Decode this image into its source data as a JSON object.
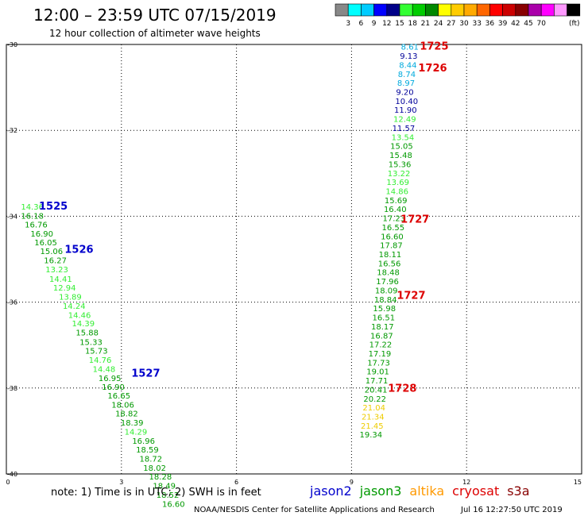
{
  "header": {
    "title": "12:00 – 23:59 UTC 07/15/2019",
    "subtitle": "12 hour collection of altimeter wave heights"
  },
  "color_scale": {
    "colors": [
      "#888888",
      "#00ffff",
      "#00ccff",
      "#0000ff",
      "#000088",
      "#33ff33",
      "#00cc00",
      "#008800",
      "#ffff00",
      "#ffcc00",
      "#ffaa00",
      "#ff6600",
      "#ff0000",
      "#cc0000",
      "#880000",
      "#aa00aa",
      "#ff00ff",
      "#ff99ff",
      "#000000"
    ],
    "labels": [
      "3",
      "6",
      "9",
      "12",
      "15",
      "18",
      "21",
      "24",
      "27",
      "30",
      "33",
      "36",
      "39",
      "42",
      "45",
      "70"
    ],
    "unit": "(ft)"
  },
  "footer": {
    "note": "note:  1) Time is in UTC;  2) SWH is in feet",
    "legend": [
      {
        "name": "jason2",
        "color": "#0000cc"
      },
      {
        "name": "jason3",
        "color": "#009900"
      },
      {
        "name": "altika",
        "color": "#ff9900"
      },
      {
        "name": "cryosat",
        "color": "#dd0000"
      },
      {
        "name": "s3a",
        "color": "#880000"
      }
    ],
    "credit": "NOAA/NESDIS Center for Satellite Applications and Research",
    "timestamp": "Jul 16 12:27:50 UTC 2019"
  },
  "chart_data": {
    "type": "scatter",
    "title": "12:00 – 23:59 UTC 07/15/2019",
    "subtitle": "12 hour collection of altimeter wave heights",
    "xlim": [
      0,
      15
    ],
    "ylim": [
      -40,
      -30
    ],
    "x_ticks": [
      "0",
      "3",
      "6",
      "9",
      "12",
      "15"
    ],
    "y_ticks": [
      "-30",
      "-32",
      "-34",
      "-36",
      "-38",
      "-40"
    ],
    "grid": true,
    "track_labels": [
      {
        "text": "1525",
        "x": 0.85,
        "y": -33.77,
        "color": "#0000cc"
      },
      {
        "text": "1526",
        "x": 1.52,
        "y": -34.78,
        "color": "#0000cc"
      },
      {
        "text": "1527",
        "x": 3.26,
        "y": -37.66,
        "color": "#0000cc"
      },
      {
        "text": "1725",
        "x": 10.78,
        "y": -30.05,
        "color": "#dd0000"
      },
      {
        "text": "1726",
        "x": 10.74,
        "y": -30.55,
        "color": "#dd0000"
      },
      {
        "text": "1727",
        "x": 10.28,
        "y": -34.08,
        "color": "#dd0000"
      },
      {
        "text": "1727",
        "x": 10.18,
        "y": -35.85,
        "color": "#dd0000"
      },
      {
        "text": "1728",
        "x": 9.95,
        "y": -38.01,
        "color": "#dd0000"
      }
    ],
    "points": [
      {
        "v": "14.36",
        "x": 0.38,
        "y": -33.77,
        "c": "#33ee33"
      },
      {
        "v": "16.18",
        "x": 0.38,
        "y": -33.98,
        "c": "#009900"
      },
      {
        "v": "16.76",
        "x": 0.48,
        "y": -34.19,
        "c": "#009900"
      },
      {
        "v": "16.90",
        "x": 0.63,
        "y": -34.4,
        "c": "#009900"
      },
      {
        "v": "16.05",
        "x": 0.73,
        "y": -34.6,
        "c": "#009900"
      },
      {
        "v": "15.06",
        "x": 0.88,
        "y": -34.81,
        "c": "#009900"
      },
      {
        "v": "16.27",
        "x": 0.98,
        "y": -35.02,
        "c": "#009900"
      },
      {
        "v": "13.23",
        "x": 1.02,
        "y": -35.23,
        "c": "#33ee33"
      },
      {
        "v": "14.41",
        "x": 1.12,
        "y": -35.45,
        "c": "#33ee33"
      },
      {
        "v": "12.94",
        "x": 1.22,
        "y": -35.66,
        "c": "#33ee33"
      },
      {
        "v": "13.89",
        "x": 1.37,
        "y": -35.87,
        "c": "#33ee33"
      },
      {
        "v": "14.24",
        "x": 1.47,
        "y": -36.08,
        "c": "#33ee33"
      },
      {
        "v": "14.46",
        "x": 1.61,
        "y": -36.29,
        "c": "#33ee33"
      },
      {
        "v": "14.39",
        "x": 1.71,
        "y": -36.49,
        "c": "#33ee33"
      },
      {
        "v": "15.88",
        "x": 1.81,
        "y": -36.7,
        "c": "#009900"
      },
      {
        "v": "15.33",
        "x": 1.91,
        "y": -36.92,
        "c": "#009900"
      },
      {
        "v": "15.73",
        "x": 2.05,
        "y": -37.13,
        "c": "#009900"
      },
      {
        "v": "14.76",
        "x": 2.15,
        "y": -37.34,
        "c": "#33ee33"
      },
      {
        "v": "14.48",
        "x": 2.25,
        "y": -37.55,
        "c": "#33ee33"
      },
      {
        "v": "16.95",
        "x": 2.4,
        "y": -37.76,
        "c": "#009900"
      },
      {
        "v": "16.90",
        "x": 2.49,
        "y": -37.97,
        "c": "#009900"
      },
      {
        "v": "16.65",
        "x": 2.64,
        "y": -38.17,
        "c": "#009900"
      },
      {
        "v": "18.06",
        "x": 2.74,
        "y": -38.38,
        "c": "#009900"
      },
      {
        "v": "18.82",
        "x": 2.84,
        "y": -38.59,
        "c": "#009900"
      },
      {
        "v": "18.39",
        "x": 2.98,
        "y": -38.8,
        "c": "#009900"
      },
      {
        "v": "14.29",
        "x": 3.08,
        "y": -39.01,
        "c": "#33ee33"
      },
      {
        "v": "16.96",
        "x": 3.28,
        "y": -39.22,
        "c": "#009900"
      },
      {
        "v": "18.59",
        "x": 3.38,
        "y": -39.43,
        "c": "#009900"
      },
      {
        "v": "18.72",
        "x": 3.47,
        "y": -39.64,
        "c": "#009900"
      },
      {
        "v": "18.02",
        "x": 3.57,
        "y": -39.85,
        "c": "#009900"
      },
      {
        "v": "18.28",
        "x": 3.72,
        "y": -40.06,
        "c": "#009900"
      },
      {
        "v": "18.49",
        "x": 3.82,
        "y": -40.27,
        "c": "#009900"
      },
      {
        "v": "18.52",
        "x": 3.91,
        "y": -40.48,
        "c": "#009900"
      },
      {
        "v": "16.60",
        "x": 4.06,
        "y": -40.69,
        "c": "#009900"
      },
      {
        "v": "8.61",
        "x": 10.29,
        "y": -30.05,
        "c": "#00aadd"
      },
      {
        "v": "9.13",
        "x": 10.26,
        "y": -30.26,
        "c": "#000099"
      },
      {
        "v": "8.44",
        "x": 10.24,
        "y": -30.47,
        "c": "#00aadd"
      },
      {
        "v": "8.74",
        "x": 10.21,
        "y": -30.68,
        "c": "#00aadd"
      },
      {
        "v": "8.97",
        "x": 10.19,
        "y": -30.89,
        "c": "#00aadd"
      },
      {
        "v": "9.20",
        "x": 10.16,
        "y": -31.1,
        "c": "#000099"
      },
      {
        "v": "10.40",
        "x": 10.14,
        "y": -31.31,
        "c": "#000099"
      },
      {
        "v": "11.90",
        "x": 10.11,
        "y": -31.52,
        "c": "#000099"
      },
      {
        "v": "12.49",
        "x": 10.09,
        "y": -31.73,
        "c": "#33ee33"
      },
      {
        "v": "11.57",
        "x": 10.06,
        "y": -31.94,
        "c": "#000099"
      },
      {
        "v": "13.54",
        "x": 10.04,
        "y": -32.15,
        "c": "#33ee33"
      },
      {
        "v": "15.05",
        "x": 10.01,
        "y": -32.36,
        "c": "#009900"
      },
      {
        "v": "15.48",
        "x": 9.99,
        "y": -32.57,
        "c": "#009900"
      },
      {
        "v": "15.36",
        "x": 9.96,
        "y": -32.78,
        "c": "#009900"
      },
      {
        "v": "13.22",
        "x": 9.94,
        "y": -32.99,
        "c": "#33ee33"
      },
      {
        "v": "13.69",
        "x": 9.91,
        "y": -33.2,
        "c": "#33ee33"
      },
      {
        "v": "14.86",
        "x": 9.89,
        "y": -33.41,
        "c": "#33ee33"
      },
      {
        "v": "15.69",
        "x": 9.86,
        "y": -33.62,
        "c": "#009900"
      },
      {
        "v": "16.40",
        "x": 9.84,
        "y": -33.83,
        "c": "#009900"
      },
      {
        "v": "17.23",
        "x": 9.81,
        "y": -34.04,
        "c": "#009900"
      },
      {
        "v": "16.55",
        "x": 9.79,
        "y": -34.25,
        "c": "#009900"
      },
      {
        "v": "16.60",
        "x": 9.76,
        "y": -34.46,
        "c": "#009900"
      },
      {
        "v": "17.87",
        "x": 9.74,
        "y": -34.67,
        "c": "#009900"
      },
      {
        "v": "18.11",
        "x": 9.71,
        "y": -34.88,
        "c": "#009900"
      },
      {
        "v": "16.56",
        "x": 9.69,
        "y": -35.09,
        "c": "#009900"
      },
      {
        "v": "18.48",
        "x": 9.66,
        "y": -35.3,
        "c": "#009900"
      },
      {
        "v": "17.96",
        "x": 9.64,
        "y": -35.51,
        "c": "#009900"
      },
      {
        "v": "18.09",
        "x": 9.61,
        "y": -35.72,
        "c": "#009900"
      },
      {
        "v": "18.84",
        "x": 9.59,
        "y": -35.93,
        "c": "#009900"
      },
      {
        "v": "15.98",
        "x": 9.56,
        "y": -36.14,
        "c": "#009900"
      },
      {
        "v": "16.51",
        "x": 9.54,
        "y": -36.35,
        "c": "#009900"
      },
      {
        "v": "18.17",
        "x": 9.51,
        "y": -36.56,
        "c": "#009900"
      },
      {
        "v": "16.87",
        "x": 9.49,
        "y": -36.77,
        "c": "#009900"
      },
      {
        "v": "17.22",
        "x": 9.46,
        "y": -36.98,
        "c": "#009900"
      },
      {
        "v": "17.19",
        "x": 9.44,
        "y": -37.19,
        "c": "#009900"
      },
      {
        "v": "17.73",
        "x": 9.41,
        "y": -37.4,
        "c": "#009900"
      },
      {
        "v": "19.01",
        "x": 9.39,
        "y": -37.61,
        "c": "#009900"
      },
      {
        "v": "17.71",
        "x": 9.36,
        "y": -37.82,
        "c": "#009900"
      },
      {
        "v": "20.41",
        "x": 9.34,
        "y": -38.03,
        "c": "#009900"
      },
      {
        "v": "20.22",
        "x": 9.31,
        "y": -38.24,
        "c": "#009900"
      },
      {
        "v": "21.04",
        "x": 9.29,
        "y": -38.45,
        "c": "#eecc00"
      },
      {
        "v": "21.34",
        "x": 9.26,
        "y": -38.66,
        "c": "#eecc00"
      },
      {
        "v": "21.45",
        "x": 9.24,
        "y": -38.87,
        "c": "#eecc00"
      },
      {
        "v": "19.34",
        "x": 9.21,
        "y": -39.08,
        "c": "#009900"
      }
    ]
  }
}
